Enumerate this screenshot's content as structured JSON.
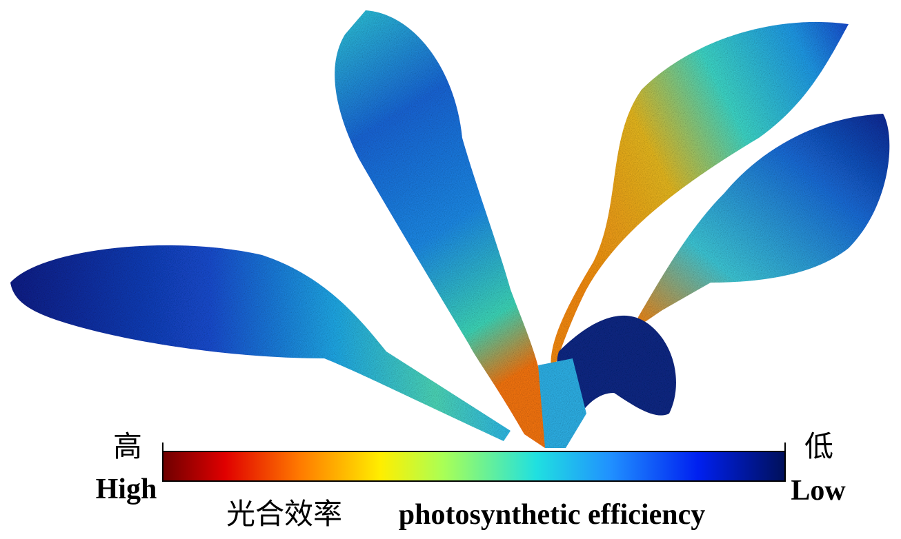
{
  "colorbar": {
    "high_label_zh": "高",
    "high_label": "High",
    "low_label_zh": "低",
    "low_label": "Low",
    "title_zh": "光合效率",
    "title": "photosynthetic efficiency"
  }
}
